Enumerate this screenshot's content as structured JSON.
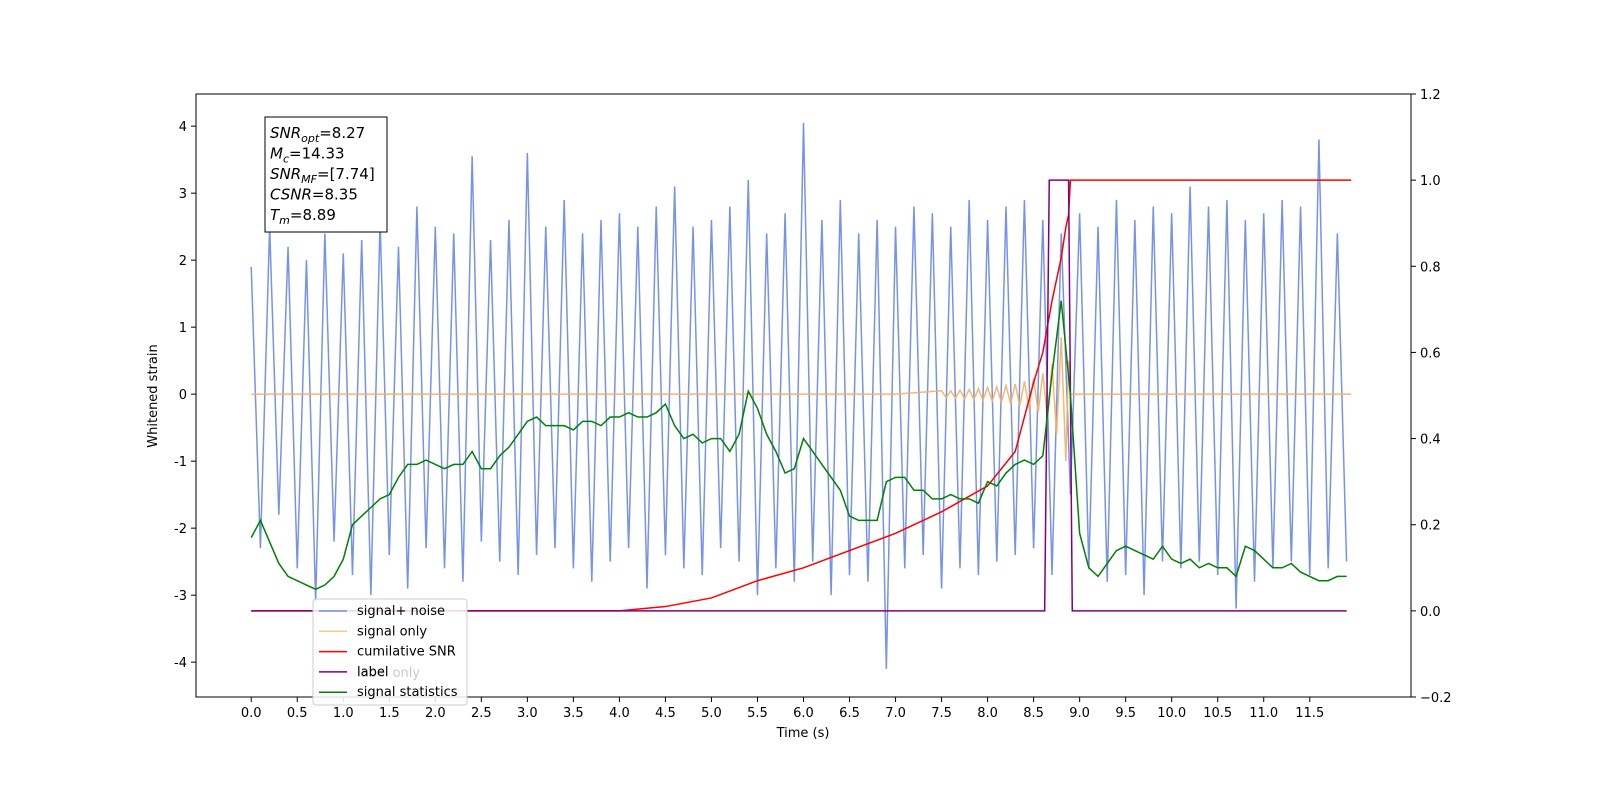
{
  "chart_data": {
    "type": "line",
    "xlabel": "Time (s)",
    "ylabel": "Whitened strain",
    "xlim": [
      -0.6,
      12.6
    ],
    "ylim": [
      -4.52,
      4.48
    ],
    "y2lim": [
      -0.2,
      1.2
    ],
    "xticks": [
      {
        "value": 0,
        "label": "0.0"
      },
      {
        "value": 0.5,
        "label": "0.5"
      },
      {
        "value": 1,
        "label": "1.0"
      },
      {
        "value": 1.5,
        "label": "1.5"
      },
      {
        "value": 2,
        "label": "2.0"
      },
      {
        "value": 2.5,
        "label": "2.5"
      },
      {
        "value": 3,
        "label": "3.0"
      },
      {
        "value": 3.5,
        "label": "3.5"
      },
      {
        "value": 4,
        "label": "4.0"
      },
      {
        "value": 4.5,
        "label": "4.5"
      },
      {
        "value": 5,
        "label": "5.0"
      },
      {
        "value": 5.5,
        "label": "5.5"
      },
      {
        "value": 6,
        "label": "6.0"
      },
      {
        "value": 6.5,
        "label": "6.5"
      },
      {
        "value": 7,
        "label": "7.0"
      },
      {
        "value": 7.5,
        "label": "7.5"
      },
      {
        "value": 8,
        "label": "8.0"
      },
      {
        "value": 8.5,
        "label": "8.5"
      },
      {
        "value": 9,
        "label": "9.0"
      },
      {
        "value": 9.5,
        "label": "9.5"
      },
      {
        "value": 10,
        "label": "10.0"
      },
      {
        "value": 10.5,
        "label": "10.5"
      },
      {
        "value": 11,
        "label": "11.0"
      },
      {
        "value": 11.5,
        "label": "11.5"
      }
    ],
    "yticks": [
      -4,
      -3,
      -2,
      -1,
      0,
      1,
      2,
      3,
      4
    ],
    "y2ticks": [
      {
        "value": -0.2,
        "label": "−0.2"
      },
      {
        "value": 0,
        "label": "0.0"
      },
      {
        "value": 0.2,
        "label": "0.2"
      },
      {
        "value": 0.4,
        "label": "0.4"
      },
      {
        "value": 0.6,
        "label": "0.6"
      },
      {
        "value": 0.8,
        "label": "0.8"
      },
      {
        "value": 1,
        "label": "1.0"
      },
      {
        "value": 1.2,
        "label": "1.2"
      }
    ],
    "x": [
      0,
      0.1,
      0.2,
      0.3,
      0.4,
      0.5,
      0.6,
      0.7,
      0.8,
      0.9,
      1,
      1.1,
      1.2,
      1.3,
      1.4,
      1.5,
      1.6,
      1.7,
      1.8,
      1.9,
      2,
      2.1,
      2.2,
      2.3,
      2.4,
      2.5,
      2.6,
      2.7,
      2.8,
      2.9,
      3,
      3.1,
      3.2,
      3.3,
      3.4,
      3.5,
      3.6,
      3.7,
      3.8,
      3.9,
      4,
      4.1,
      4.2,
      4.3,
      4.4,
      4.5,
      4.6,
      4.7,
      4.8,
      4.9,
      5,
      5.1,
      5.2,
      5.3,
      5.4,
      5.5,
      5.6,
      5.7,
      5.8,
      5.9,
      6,
      6.1,
      6.2,
      6.3,
      6.4,
      6.5,
      6.6,
      6.7,
      6.8,
      6.9,
      7,
      7.1,
      7.2,
      7.3,
      7.4,
      7.5,
      7.6,
      7.7,
      7.8,
      7.9,
      8,
      8.1,
      8.2,
      8.3,
      8.4,
      8.5,
      8.6,
      8.7,
      8.8,
      8.9,
      9,
      9.1,
      9.2,
      9.3,
      9.4,
      9.5,
      9.6,
      9.7,
      9.8,
      9.9,
      10,
      10.1,
      10.2,
      10.3,
      10.4,
      10.5,
      10.6,
      10.7,
      10.8,
      10.9,
      11,
      11.1,
      11.2,
      11.3,
      11.4,
      11.5,
      11.6,
      11.7,
      11.8,
      11.9
    ],
    "series": [
      {
        "name": "signal+ noise",
        "color": "#6f8de8",
        "values": [
          1.9,
          -2.3,
          2.5,
          -1.8,
          2.2,
          -2.6,
          2.0,
          -3.1,
          2.4,
          -2.2,
          2.1,
          -2.7,
          2.3,
          -3.0,
          2.6,
          -2.4,
          2.2,
          -2.9,
          2.8,
          -2.3,
          2.5,
          -2.6,
          2.4,
          -2.8,
          3.55,
          -2.2,
          2.3,
          -2.5,
          2.6,
          -2.7,
          3.6,
          -2.4,
          2.5,
          -2.3,
          2.9,
          -2.6,
          2.4,
          -2.8,
          2.6,
          -2.5,
          2.7,
          -2.3,
          2.5,
          -2.9,
          2.8,
          -2.4,
          3.1,
          -2.6,
          2.5,
          -2.7,
          2.6,
          -2.3,
          2.8,
          -2.5,
          3.2,
          -3.0,
          2.4,
          -2.6,
          2.7,
          -2.8,
          4.05,
          -2.5,
          2.6,
          -3.0,
          2.9,
          -2.7,
          2.4,
          -2.8,
          2.6,
          -4.1,
          2.5,
          -2.6,
          2.8,
          -2.4,
          2.7,
          -2.9,
          2.5,
          -2.6,
          2.9,
          -2.7,
          2.6,
          -2.5,
          2.8,
          -2.4,
          2.9,
          -2.3,
          2.6,
          -2.7,
          2.4,
          -1.5,
          2.7,
          -2.6,
          2.5,
          -2.8,
          2.9,
          -2.7,
          2.6,
          -3.0,
          2.8,
          -2.5,
          2.7,
          -2.6,
          3.1,
          -2.5,
          2.8,
          -2.7,
          2.9,
          -3.2,
          2.6,
          -2.8,
          2.7,
          -2.6,
          2.9,
          -2.5,
          2.8,
          -2.7,
          3.8,
          -2.6,
          2.4,
          -2.5
        ]
      },
      {
        "name": "signal only",
        "color": "#f5b060",
        "x": [
          0,
          7.0,
          7.5,
          7.55,
          7.6,
          7.65,
          7.7,
          7.75,
          7.8,
          7.85,
          7.9,
          7.95,
          8.0,
          8.05,
          8.1,
          8.15,
          8.2,
          8.25,
          8.3,
          8.35,
          8.4,
          8.45,
          8.5,
          8.55,
          8.6,
          8.65,
          8.7,
          8.75,
          8.8,
          8.85,
          8.88,
          8.9,
          11.95
        ],
        "values": [
          0,
          0,
          0.05,
          -0.05,
          0.05,
          -0.06,
          0.06,
          -0.07,
          0.07,
          -0.08,
          0.08,
          -0.09,
          0.1,
          -0.1,
          0.11,
          -0.12,
          0.13,
          -0.14,
          0.15,
          -0.17,
          0.19,
          -0.21,
          0.24,
          -0.27,
          0.31,
          -0.36,
          0.45,
          -0.6,
          0.85,
          -1.0,
          0.5,
          0,
          0
        ]
      },
      {
        "name": "cumilative SNR",
        "color": "#ff0000",
        "axis": "y2",
        "x": [
          0,
          4.0,
          4.5,
          5.0,
          5.5,
          6.0,
          6.5,
          7.0,
          7.5,
          8.0,
          8.3,
          8.5,
          8.6,
          8.7,
          8.8,
          8.85,
          8.88,
          8.9,
          11.95
        ],
        "values": [
          0,
          0,
          0.01,
          0.03,
          0.07,
          0.1,
          0.14,
          0.18,
          0.23,
          0.29,
          0.37,
          0.53,
          0.6,
          0.72,
          0.82,
          0.89,
          0.92,
          1.0,
          1.0
        ]
      },
      {
        "name": "label",
        "color": "#800080",
        "axis": "y2",
        "x": [
          0,
          8.62,
          8.67,
          8.88,
          8.92,
          11.9
        ],
        "values": [
          0,
          0,
          1,
          1,
          0,
          0
        ]
      },
      {
        "name": "signal statistics",
        "color": "#008000",
        "axis": "y2",
        "values": [
          0.17,
          0.21,
          0.16,
          0.11,
          0.08,
          0.07,
          0.06,
          0.05,
          0.06,
          0.08,
          0.12,
          0.2,
          0.22,
          0.24,
          0.26,
          0.27,
          0.31,
          0.34,
          0.34,
          0.35,
          0.34,
          0.33,
          0.34,
          0.34,
          0.37,
          0.33,
          0.33,
          0.36,
          0.38,
          0.41,
          0.44,
          0.45,
          0.43,
          0.43,
          0.43,
          0.42,
          0.44,
          0.44,
          0.43,
          0.45,
          0.45,
          0.46,
          0.45,
          0.45,
          0.46,
          0.48,
          0.43,
          0.4,
          0.41,
          0.39,
          0.4,
          0.4,
          0.37,
          0.41,
          0.51,
          0.47,
          0.41,
          0.37,
          0.32,
          0.33,
          0.4,
          0.37,
          0.34,
          0.31,
          0.28,
          0.22,
          0.21,
          0.21,
          0.21,
          0.3,
          0.31,
          0.31,
          0.28,
          0.28,
          0.26,
          0.26,
          0.27,
          0.26,
          0.26,
          0.25,
          0.3,
          0.29,
          0.32,
          0.34,
          0.35,
          0.34,
          0.36,
          0.55,
          0.72,
          0.5,
          0.18,
          0.1,
          0.08,
          0.11,
          0.14,
          0.15,
          0.14,
          0.13,
          0.12,
          0.15,
          0.12,
          0.11,
          0.12,
          0.1,
          0.11,
          0.1,
          0.1,
          0.08,
          0.15,
          0.14,
          0.12,
          0.1,
          0.1,
          0.11,
          0.09,
          0.08,
          0.07,
          0.07,
          0.08,
          0.08
        ]
      }
    ],
    "legend_extra": [
      "label only"
    ],
    "annotation": [
      {
        "main": "SNR",
        "sub": "opt",
        "rest": "=8.27"
      },
      {
        "main": "M",
        "sub": "c",
        "rest": "=14.33"
      },
      {
        "main": "SNR",
        "sub": "MF",
        "rest": "=[7.74]"
      },
      {
        "main": "CSNR",
        "rest": "=8.35"
      },
      {
        "main": "T",
        "sub": "m",
        "rest": "=8.89"
      }
    ]
  }
}
